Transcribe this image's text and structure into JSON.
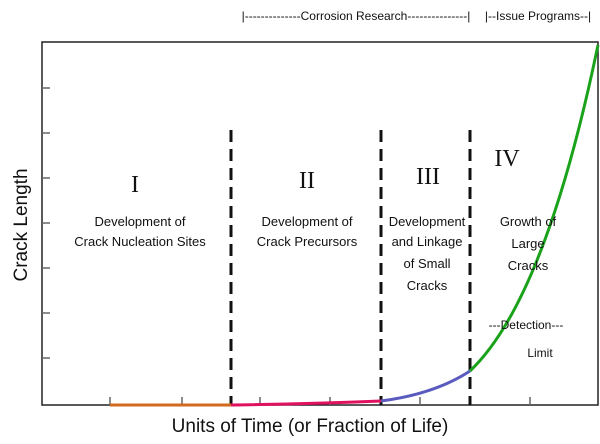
{
  "top_labels": {
    "corrosion_research": "|--------------Corrosion Research---------------|",
    "issue_programs": "|--Issue Programs--|"
  },
  "y_axis_label": "Crack Length",
  "x_axis_label": "Units of Time (or Fraction of Life)",
  "stages": [
    {
      "numeral": "I",
      "lines": [
        "Development of",
        "Crack Nucleation Sites"
      ]
    },
    {
      "numeral": "II",
      "lines": [
        "Development of",
        "Crack Precursors"
      ]
    },
    {
      "numeral": "III",
      "lines": [
        "Development",
        "and Linkage",
        "of Small",
        "Cracks"
      ]
    },
    {
      "numeral": "IV",
      "lines": [
        "Growth of",
        "Large",
        "Cracks"
      ]
    }
  ],
  "detection_limit": [
    "---Detection---",
    "Limit"
  ]
}
